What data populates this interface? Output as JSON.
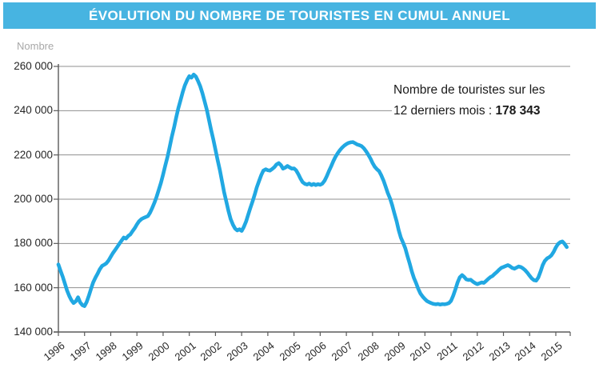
{
  "header": {
    "title": "ÉVOLUTION DU NOMBRE DE TOURISTES EN CUMUL ANNUEL",
    "bg_color": "#47B4E1",
    "text_color": "#FFFFFF"
  },
  "axis_unit_label": "Nombre",
  "annotation": {
    "line1": "Nombre de touristes sur les",
    "line2_prefix": "12 derniers mois : ",
    "line2_value": "178 343"
  },
  "chart_data": {
    "type": "line",
    "title": "ÉVOLUTION DU NOMBRE DE TOURISTES EN CUMUL ANNUEL",
    "xlabel": "",
    "ylabel": "Nombre",
    "x_ticks": [
      "1996",
      "1997",
      "1998",
      "1999",
      "2000",
      "2001",
      "2002",
      "2003",
      "2004",
      "2005",
      "2006",
      "2007",
      "2008",
      "2009",
      "2010",
      "2011",
      "2012",
      "2013",
      "2014",
      "2015"
    ],
    "y_ticks": [
      "140 000",
      "160 000",
      "180 000",
      "200 000",
      "220 000",
      "240 000",
      "260 000"
    ],
    "ylim": [
      140000,
      260000
    ],
    "xlim": [
      1996.0,
      2015.55
    ],
    "y_step": 20000,
    "grid": "horizontal",
    "legend_position": "none",
    "line_color": "#21A8E2",
    "grid_color": "#8F8F8F",
    "axis_color": "#5A5A5A",
    "series": [
      {
        "name": "Nombre de touristes en cumul annuel",
        "points": [
          [
            1996.0,
            170500
          ],
          [
            1996.08,
            167800
          ],
          [
            1996.17,
            164800
          ],
          [
            1996.25,
            161800
          ],
          [
            1996.33,
            158800
          ],
          [
            1996.42,
            156200
          ],
          [
            1996.5,
            154300
          ],
          [
            1996.58,
            153100
          ],
          [
            1996.67,
            153900
          ],
          [
            1996.75,
            155700
          ],
          [
            1996.83,
            153400
          ],
          [
            1996.92,
            152100
          ],
          [
            1997.0,
            151700
          ],
          [
            1997.08,
            153600
          ],
          [
            1997.17,
            156600
          ],
          [
            1997.25,
            159600
          ],
          [
            1997.33,
            162400
          ],
          [
            1997.42,
            164700
          ],
          [
            1997.5,
            166400
          ],
          [
            1997.58,
            168300
          ],
          [
            1997.67,
            169900
          ],
          [
            1997.75,
            170400
          ],
          [
            1997.83,
            171000
          ],
          [
            1997.92,
            172400
          ],
          [
            1998.0,
            174000
          ],
          [
            1998.08,
            175600
          ],
          [
            1998.17,
            177100
          ],
          [
            1998.25,
            178500
          ],
          [
            1998.33,
            179900
          ],
          [
            1998.42,
            181400
          ],
          [
            1998.5,
            182700
          ],
          [
            1998.58,
            182200
          ],
          [
            1998.67,
            183400
          ],
          [
            1998.75,
            184100
          ],
          [
            1998.83,
            185500
          ],
          [
            1998.92,
            187000
          ],
          [
            1999.0,
            188600
          ],
          [
            1999.08,
            190000
          ],
          [
            1999.17,
            191000
          ],
          [
            1999.25,
            191500
          ],
          [
            1999.33,
            191900
          ],
          [
            1999.42,
            192400
          ],
          [
            1999.5,
            193900
          ],
          [
            1999.58,
            195900
          ],
          [
            1999.67,
            198400
          ],
          [
            1999.75,
            201100
          ],
          [
            1999.83,
            204100
          ],
          [
            1999.92,
            207500
          ],
          [
            2000.0,
            211100
          ],
          [
            2000.08,
            215100
          ],
          [
            2000.17,
            219200
          ],
          [
            2000.25,
            223500
          ],
          [
            2000.33,
            228000
          ],
          [
            2000.42,
            232500
          ],
          [
            2000.5,
            236900
          ],
          [
            2000.58,
            241000
          ],
          [
            2000.67,
            244900
          ],
          [
            2000.75,
            248400
          ],
          [
            2000.83,
            251400
          ],
          [
            2000.92,
            253900
          ],
          [
            2001.0,
            255600
          ],
          [
            2001.08,
            254900
          ],
          [
            2001.17,
            256300
          ],
          [
            2001.25,
            255400
          ],
          [
            2001.33,
            253500
          ],
          [
            2001.42,
            251000
          ],
          [
            2001.5,
            247900
          ],
          [
            2001.58,
            244400
          ],
          [
            2001.67,
            240400
          ],
          [
            2001.75,
            236000
          ],
          [
            2001.83,
            231400
          ],
          [
            2001.92,
            226900
          ],
          [
            2002.0,
            222400
          ],
          [
            2002.08,
            217900
          ],
          [
            2002.17,
            213000
          ],
          [
            2002.25,
            208100
          ],
          [
            2002.33,
            203200
          ],
          [
            2002.42,
            198600
          ],
          [
            2002.5,
            194500
          ],
          [
            2002.58,
            191000
          ],
          [
            2002.67,
            188400
          ],
          [
            2002.75,
            186700
          ],
          [
            2002.83,
            185900
          ],
          [
            2002.92,
            186400
          ],
          [
            2003.0,
            185700
          ],
          [
            2003.08,
            187400
          ],
          [
            2003.17,
            189900
          ],
          [
            2003.25,
            192900
          ],
          [
            2003.33,
            196000
          ],
          [
            2003.42,
            199100
          ],
          [
            2003.5,
            202100
          ],
          [
            2003.58,
            205400
          ],
          [
            2003.67,
            208400
          ],
          [
            2003.75,
            210900
          ],
          [
            2003.83,
            212900
          ],
          [
            2003.92,
            213500
          ],
          [
            2004.0,
            213100
          ],
          [
            2004.08,
            212900
          ],
          [
            2004.17,
            213700
          ],
          [
            2004.25,
            214500
          ],
          [
            2004.33,
            215700
          ],
          [
            2004.42,
            216300
          ],
          [
            2004.5,
            215400
          ],
          [
            2004.58,
            213800
          ],
          [
            2004.67,
            214300
          ],
          [
            2004.75,
            215000
          ],
          [
            2004.83,
            214400
          ],
          [
            2004.92,
            213800
          ],
          [
            2005.0,
            213900
          ],
          [
            2005.08,
            213100
          ],
          [
            2005.17,
            211200
          ],
          [
            2005.25,
            209300
          ],
          [
            2005.33,
            207700
          ],
          [
            2005.42,
            206900
          ],
          [
            2005.5,
            206600
          ],
          [
            2005.58,
            207100
          ],
          [
            2005.67,
            206400
          ],
          [
            2005.75,
            206900
          ],
          [
            2005.83,
            206400
          ],
          [
            2005.92,
            206800
          ],
          [
            2006.0,
            206500
          ],
          [
            2006.08,
            207000
          ],
          [
            2006.17,
            208400
          ],
          [
            2006.25,
            210300
          ],
          [
            2006.33,
            212600
          ],
          [
            2006.42,
            214900
          ],
          [
            2006.5,
            217100
          ],
          [
            2006.58,
            219100
          ],
          [
            2006.67,
            220800
          ],
          [
            2006.75,
            222100
          ],
          [
            2006.83,
            223200
          ],
          [
            2006.92,
            224200
          ],
          [
            2007.0,
            224900
          ],
          [
            2007.08,
            225400
          ],
          [
            2007.17,
            225700
          ],
          [
            2007.25,
            225800
          ],
          [
            2007.33,
            225300
          ],
          [
            2007.42,
            224700
          ],
          [
            2007.5,
            224400
          ],
          [
            2007.58,
            224000
          ],
          [
            2007.67,
            223000
          ],
          [
            2007.75,
            221700
          ],
          [
            2007.83,
            220200
          ],
          [
            2007.92,
            218400
          ],
          [
            2008.0,
            216400
          ],
          [
            2008.08,
            214700
          ],
          [
            2008.17,
            213500
          ],
          [
            2008.25,
            212700
          ],
          [
            2008.33,
            210900
          ],
          [
            2008.42,
            208400
          ],
          [
            2008.5,
            205700
          ],
          [
            2008.58,
            202900
          ],
          [
            2008.67,
            200300
          ],
          [
            2008.75,
            197300
          ],
          [
            2008.83,
            193800
          ],
          [
            2008.92,
            189900
          ],
          [
            2009.0,
            185900
          ],
          [
            2009.08,
            182700
          ],
          [
            2009.17,
            180300
          ],
          [
            2009.25,
            177800
          ],
          [
            2009.33,
            174400
          ],
          [
            2009.42,
            170900
          ],
          [
            2009.5,
            167400
          ],
          [
            2009.58,
            164400
          ],
          [
            2009.67,
            161900
          ],
          [
            2009.75,
            159400
          ],
          [
            2009.83,
            157400
          ],
          [
            2009.92,
            155900
          ],
          [
            2010.0,
            154900
          ],
          [
            2010.08,
            154000
          ],
          [
            2010.17,
            153400
          ],
          [
            2010.25,
            153000
          ],
          [
            2010.33,
            152700
          ],
          [
            2010.42,
            152500
          ],
          [
            2010.5,
            152700
          ],
          [
            2010.58,
            152400
          ],
          [
            2010.67,
            152600
          ],
          [
            2010.75,
            152500
          ],
          [
            2010.83,
            152700
          ],
          [
            2010.92,
            153100
          ],
          [
            2011.0,
            154100
          ],
          [
            2011.08,
            156400
          ],
          [
            2011.17,
            159400
          ],
          [
            2011.25,
            162400
          ],
          [
            2011.33,
            164700
          ],
          [
            2011.42,
            165700
          ],
          [
            2011.5,
            164900
          ],
          [
            2011.58,
            163800
          ],
          [
            2011.67,
            163500
          ],
          [
            2011.75,
            163600
          ],
          [
            2011.83,
            162800
          ],
          [
            2011.92,
            162100
          ],
          [
            2012.0,
            161600
          ],
          [
            2012.08,
            162000
          ],
          [
            2012.17,
            162400
          ],
          [
            2012.25,
            162200
          ],
          [
            2012.33,
            163000
          ],
          [
            2012.42,
            164000
          ],
          [
            2012.5,
            164800
          ],
          [
            2012.58,
            165300
          ],
          [
            2012.67,
            166300
          ],
          [
            2012.75,
            167100
          ],
          [
            2012.83,
            168100
          ],
          [
            2012.92,
            169000
          ],
          [
            2013.0,
            169400
          ],
          [
            2013.08,
            169800
          ],
          [
            2013.17,
            170200
          ],
          [
            2013.25,
            169700
          ],
          [
            2013.33,
            169000
          ],
          [
            2013.42,
            168600
          ],
          [
            2013.5,
            169100
          ],
          [
            2013.58,
            169600
          ],
          [
            2013.67,
            169300
          ],
          [
            2013.75,
            168700
          ],
          [
            2013.83,
            167900
          ],
          [
            2013.92,
            166700
          ],
          [
            2014.0,
            165400
          ],
          [
            2014.08,
            164200
          ],
          [
            2014.17,
            163400
          ],
          [
            2014.25,
            163200
          ],
          [
            2014.33,
            164600
          ],
          [
            2014.42,
            167400
          ],
          [
            2014.5,
            170200
          ],
          [
            2014.58,
            172100
          ],
          [
            2014.67,
            173300
          ],
          [
            2014.75,
            173800
          ],
          [
            2014.83,
            174600
          ],
          [
            2014.92,
            176300
          ],
          [
            2015.0,
            178200
          ],
          [
            2015.08,
            179700
          ],
          [
            2015.17,
            180600
          ],
          [
            2015.25,
            180900
          ],
          [
            2015.33,
            179900
          ],
          [
            2015.42,
            178343
          ]
        ]
      }
    ],
    "annotations": [
      {
        "text": "Nombre de touristes sur les 12 derniers mois : 178 343",
        "position": "upper-right"
      }
    ]
  }
}
